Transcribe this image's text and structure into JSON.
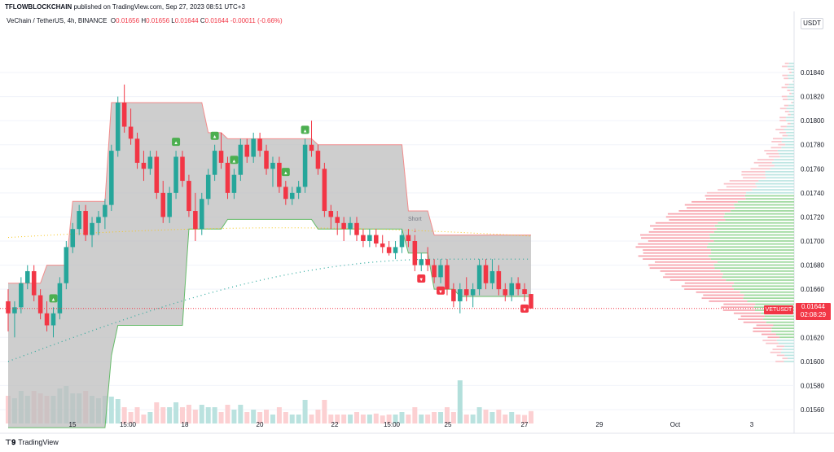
{
  "header": {
    "publisher": "TFLOWBLOCKCHAIN",
    "published_text": "published on TradingView.com, Sep 27, 2023 08:51 UTC+3"
  },
  "legend": {
    "symbol": "VeChain / TetherUS, 4h, BINANCE",
    "o_label": "O",
    "o": "0.01656",
    "h_label": "H",
    "h": "0.01656",
    "l_label": "L",
    "l": "0.01644",
    "c_label": "C",
    "c": "0.01644",
    "change": "-0.00011 (-0.66%)"
  },
  "axis": {
    "currency": "USDT",
    "price_ticks": [
      "0.01840",
      "0.01820",
      "0.01800",
      "0.01780",
      "0.01760",
      "0.01740",
      "0.01720",
      "0.01700",
      "0.01680",
      "0.01660",
      "0.01620",
      "0.01600",
      "0.01580",
      "0.01560"
    ],
    "time_ticks": [
      "15",
      "15:00",
      "18",
      "20",
      "22",
      "15:00",
      "25",
      "27",
      "29",
      "Oct",
      "3"
    ]
  },
  "last_price": {
    "symbol": "VETUSDT",
    "value": "0.01644",
    "countdown": "02:08:29"
  },
  "annotation": {
    "short_label": "Short"
  },
  "brand": {
    "name": "TradingView"
  },
  "colors": {
    "up": "#26a69a",
    "down": "#f23645",
    "band": "#bdbdbd",
    "vp_up": "#9fd99f",
    "vp_down": "#f7a7b0"
  },
  "chart_data": {
    "type": "candlestick",
    "symbol": "VETUSDT",
    "interval": "4h",
    "ylim": [
      0.0155,
      0.0185
    ],
    "last_close": 0.01644,
    "candles": [
      [
        0.0165,
        0.0166,
        0.01625,
        0.0164
      ],
      [
        0.0164,
        0.0165,
        0.0162,
        0.01645
      ],
      [
        0.01645,
        0.0167,
        0.0164,
        0.01665
      ],
      [
        0.01665,
        0.0168,
        0.0166,
        0.01675
      ],
      [
        0.01675,
        0.0168,
        0.0165,
        0.01655
      ],
      [
        0.01655,
        0.0166,
        0.01635,
        0.0164
      ],
      [
        0.0164,
        0.0165,
        0.01625,
        0.0163
      ],
      [
        0.0163,
        0.01645,
        0.0162,
        0.0164
      ],
      [
        0.0164,
        0.0167,
        0.01635,
        0.01665
      ],
      [
        0.01665,
        0.017,
        0.0166,
        0.01695
      ],
      [
        0.01695,
        0.01715,
        0.0169,
        0.0171
      ],
      [
        0.0171,
        0.0173,
        0.01705,
        0.01725
      ],
      [
        0.01725,
        0.0173,
        0.017,
        0.01705
      ],
      [
        0.01705,
        0.0172,
        0.01695,
        0.01715
      ],
      [
        0.01715,
        0.01725,
        0.01705,
        0.0172
      ],
      [
        0.0172,
        0.01735,
        0.0171,
        0.0173
      ],
      [
        0.0173,
        0.0178,
        0.01725,
        0.01775
      ],
      [
        0.01775,
        0.0182,
        0.0177,
        0.01815
      ],
      [
        0.01815,
        0.0183,
        0.0179,
        0.01795
      ],
      [
        0.01795,
        0.0181,
        0.0178,
        0.01785
      ],
      [
        0.01785,
        0.0179,
        0.0176,
        0.01765
      ],
      [
        0.01765,
        0.01775,
        0.0175,
        0.0176
      ],
      [
        0.0176,
        0.01775,
        0.01755,
        0.0177
      ],
      [
        0.0177,
        0.01775,
        0.01735,
        0.0174
      ],
      [
        0.0174,
        0.0175,
        0.01715,
        0.0172
      ],
      [
        0.0172,
        0.01745,
        0.01715,
        0.0174
      ],
      [
        0.0174,
        0.01775,
        0.01735,
        0.0177
      ],
      [
        0.0177,
        0.01775,
        0.01745,
        0.0175
      ],
      [
        0.0175,
        0.01755,
        0.0172,
        0.01725
      ],
      [
        0.01725,
        0.0174,
        0.017,
        0.0171
      ],
      [
        0.0171,
        0.0174,
        0.01705,
        0.01735
      ],
      [
        0.01735,
        0.0176,
        0.0173,
        0.01755
      ],
      [
        0.01755,
        0.0178,
        0.0175,
        0.01775
      ],
      [
        0.01775,
        0.0179,
        0.0176,
        0.01765
      ],
      [
        0.01765,
        0.0177,
        0.01735,
        0.0174
      ],
      [
        0.0174,
        0.0176,
        0.01735,
        0.01755
      ],
      [
        0.01755,
        0.01785,
        0.0175,
        0.0178
      ],
      [
        0.0178,
        0.01785,
        0.01765,
        0.0177
      ],
      [
        0.0177,
        0.0179,
        0.01765,
        0.01785
      ],
      [
        0.01785,
        0.0179,
        0.0177,
        0.01775
      ],
      [
        0.01775,
        0.0178,
        0.01755,
        0.0176
      ],
      [
        0.0176,
        0.0177,
        0.01745,
        0.01765
      ],
      [
        0.01765,
        0.0177,
        0.0174,
        0.01745
      ],
      [
        0.01745,
        0.0175,
        0.0173,
        0.01735
      ],
      [
        0.01735,
        0.01745,
        0.0173,
        0.0174
      ],
      [
        0.0174,
        0.0175,
        0.01735,
        0.01745
      ],
      [
        0.01745,
        0.01785,
        0.0174,
        0.0178
      ],
      [
        0.0178,
        0.018,
        0.0177,
        0.01775
      ],
      [
        0.01775,
        0.0178,
        0.01755,
        0.0176
      ],
      [
        0.0176,
        0.01765,
        0.0172,
        0.01725
      ],
      [
        0.01725,
        0.0173,
        0.0171,
        0.0172
      ],
      [
        0.0172,
        0.01725,
        0.01705,
        0.01715
      ],
      [
        0.01715,
        0.0172,
        0.017,
        0.0171
      ],
      [
        0.0171,
        0.0172,
        0.01705,
        0.01715
      ],
      [
        0.01715,
        0.0172,
        0.017,
        0.01705
      ],
      [
        0.01705,
        0.0171,
        0.01695,
        0.017
      ],
      [
        0.017,
        0.0171,
        0.01695,
        0.01705
      ],
      [
        0.01705,
        0.0171,
        0.01695,
        0.01698
      ],
      [
        0.01698,
        0.01705,
        0.0169,
        0.01695
      ],
      [
        0.01695,
        0.017,
        0.01688,
        0.0169
      ],
      [
        0.0169,
        0.017,
        0.01685,
        0.01695
      ],
      [
        0.01695,
        0.0171,
        0.0169,
        0.01705
      ],
      [
        0.01705,
        0.0171,
        0.01695,
        0.017
      ],
      [
        0.017,
        0.01705,
        0.01675,
        0.0168
      ],
      [
        0.0168,
        0.0169,
        0.01675,
        0.01685
      ],
      [
        0.01685,
        0.01695,
        0.01675,
        0.0168
      ],
      [
        0.0168,
        0.01685,
        0.01665,
        0.0167
      ],
      [
        0.0167,
        0.01685,
        0.01665,
        0.0168
      ],
      [
        0.0168,
        0.01685,
        0.01655,
        0.0166
      ],
      [
        0.0166,
        0.01665,
        0.01645,
        0.0165
      ],
      [
        0.0165,
        0.01665,
        0.0164,
        0.0166
      ],
      [
        0.0166,
        0.0167,
        0.0165,
        0.01655
      ],
      [
        0.01655,
        0.01665,
        0.01645,
        0.0166
      ],
      [
        0.0166,
        0.01685,
        0.01655,
        0.0168
      ],
      [
        0.0168,
        0.01685,
        0.0166,
        0.01665
      ],
      [
        0.01665,
        0.01685,
        0.0166,
        0.01675
      ],
      [
        0.01675,
        0.0168,
        0.01655,
        0.0166
      ],
      [
        0.0166,
        0.01665,
        0.0165,
        0.01655
      ],
      [
        0.01655,
        0.0167,
        0.0165,
        0.01665
      ],
      [
        0.01665,
        0.0167,
        0.01655,
        0.0166
      ],
      [
        0.0166,
        0.01665,
        0.0165,
        0.01656
      ],
      [
        0.01656,
        0.01656,
        0.01644,
        0.01644
      ]
    ]
  }
}
